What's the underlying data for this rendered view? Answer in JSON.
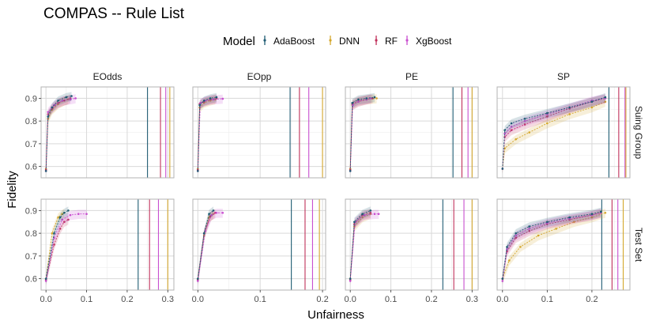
{
  "title": "COMPAS -- Rule List",
  "legend": {
    "title": "Model",
    "items": [
      {
        "label": "AdaBoost",
        "color": "#1f5c73"
      },
      {
        "label": "DNN",
        "color": "#d4a72c"
      },
      {
        "label": "RF",
        "color": "#c0305a"
      },
      {
        "label": "XgBoost",
        "color": "#c94fd0"
      }
    ]
  },
  "xlabel": "Unfairness",
  "ylabel": "Fidelity",
  "chart_data": {
    "type": "line",
    "title": "COMPAS -- Rule List",
    "xlabel": "Unfairness",
    "ylabel": "Fidelity",
    "ylim": [
      0.55,
      0.95
    ],
    "yticks": [
      0.6,
      0.7,
      0.8,
      0.9
    ],
    "ytick_labels": [
      "0.6",
      "0.7",
      "0.8",
      "0.9"
    ],
    "columns": [
      {
        "label": "EOdds",
        "xlim": [
          -0.012,
          0.315
        ],
        "xticks": [
          0.0,
          0.1,
          0.2,
          0.3
        ],
        "xtick_labels": [
          "0.0",
          "0.1",
          "0.2",
          "0.3"
        ]
      },
      {
        "label": "EOpp",
        "xlim": [
          -0.008,
          0.205
        ],
        "xticks": [
          0.0,
          0.1,
          0.2
        ],
        "xtick_labels": [
          "0.0",
          "0.1",
          "0.2"
        ]
      },
      {
        "label": "PE",
        "xlim": [
          -0.012,
          0.315
        ],
        "xticks": [
          0.0,
          0.1,
          0.2,
          0.3
        ],
        "xtick_labels": [
          "0.0",
          "0.1",
          "0.2",
          "0.3"
        ]
      },
      {
        "label": "SP",
        "xlim": [
          -0.012,
          0.285
        ],
        "xticks": [
          0.0,
          0.1,
          0.2
        ],
        "xtick_labels": [
          "0.0",
          "0.1",
          "0.2"
        ]
      }
    ],
    "rows": [
      {
        "label": "Suing Group"
      },
      {
        "label": "Test Set"
      }
    ],
    "series": [
      {
        "name": "AdaBoost",
        "color": "#1f5c73"
      },
      {
        "name": "DNN",
        "color": "#d4a72c"
      },
      {
        "name": "RF",
        "color": "#c0305a"
      },
      {
        "name": "XgBoost",
        "color": "#c94fd0"
      }
    ],
    "panels": [
      {
        "row": 0,
        "col": 0,
        "vlines": {
          "AdaBoost": 0.25,
          "RF": 0.282,
          "XgBoost": 0.295,
          "DNN": 0.305
        },
        "curves": {
          "AdaBoost": [
            [
              0.0,
              0.58
            ],
            [
              0.005,
              0.82
            ],
            [
              0.015,
              0.86
            ],
            [
              0.03,
              0.89
            ],
            [
              0.05,
              0.905
            ],
            [
              0.063,
              0.91
            ]
          ],
          "DNN": [
            [
              0.0,
              0.59
            ],
            [
              0.005,
              0.81
            ],
            [
              0.015,
              0.85
            ],
            [
              0.03,
              0.875
            ],
            [
              0.045,
              0.89
            ],
            [
              0.055,
              0.895
            ]
          ],
          "RF": [
            [
              0.0,
              0.585
            ],
            [
              0.005,
              0.83
            ],
            [
              0.015,
              0.855
            ],
            [
              0.03,
              0.88
            ],
            [
              0.045,
              0.89
            ],
            [
              0.06,
              0.9
            ]
          ],
          "XgBoost": [
            [
              0.0,
              0.58
            ],
            [
              0.005,
              0.84
            ],
            [
              0.02,
              0.87
            ],
            [
              0.04,
              0.89
            ],
            [
              0.06,
              0.895
            ],
            [
              0.073,
              0.9
            ]
          ]
        }
      },
      {
        "row": 0,
        "col": 1,
        "vlines": {
          "AdaBoost": 0.148,
          "RF": 0.163,
          "XgBoost": 0.178,
          "DNN": 0.2
        },
        "curves": {
          "AdaBoost": [
            [
              0.0,
              0.58
            ],
            [
              0.003,
              0.87
            ],
            [
              0.01,
              0.89
            ],
            [
              0.02,
              0.9
            ],
            [
              0.03,
              0.905
            ]
          ],
          "DNN": [
            [
              0.0,
              0.59
            ],
            [
              0.003,
              0.86
            ],
            [
              0.01,
              0.88
            ],
            [
              0.02,
              0.89
            ],
            [
              0.028,
              0.895
            ]
          ],
          "RF": [
            [
              0.0,
              0.585
            ],
            [
              0.003,
              0.875
            ],
            [
              0.01,
              0.885
            ],
            [
              0.02,
              0.895
            ],
            [
              0.03,
              0.9
            ]
          ],
          "XgBoost": [
            [
              0.0,
              0.58
            ],
            [
              0.004,
              0.88
            ],
            [
              0.012,
              0.89
            ],
            [
              0.025,
              0.895
            ],
            [
              0.04,
              0.898
            ]
          ]
        }
      },
      {
        "row": 0,
        "col": 2,
        "vlines": {
          "AdaBoost": 0.253,
          "RF": 0.275,
          "XgBoost": 0.29,
          "DNN": 0.3
        },
        "curves": {
          "AdaBoost": [
            [
              0.0,
              0.58
            ],
            [
              0.005,
              0.88
            ],
            [
              0.02,
              0.895
            ],
            [
              0.04,
              0.9
            ],
            [
              0.06,
              0.905
            ]
          ],
          "DNN": [
            [
              0.0,
              0.59
            ],
            [
              0.005,
              0.87
            ],
            [
              0.02,
              0.885
            ],
            [
              0.04,
              0.895
            ],
            [
              0.065,
              0.9
            ]
          ],
          "RF": [
            [
              0.0,
              0.585
            ],
            [
              0.005,
              0.875
            ],
            [
              0.02,
              0.89
            ],
            [
              0.04,
              0.895
            ],
            [
              0.055,
              0.9
            ]
          ],
          "XgBoost": [
            [
              0.0,
              0.58
            ],
            [
              0.006,
              0.87
            ],
            [
              0.02,
              0.885
            ],
            [
              0.04,
              0.895
            ],
            [
              0.05,
              0.9
            ]
          ]
        }
      },
      {
        "row": 0,
        "col": 3,
        "vlines": {
          "AdaBoost": 0.238,
          "RF": 0.26,
          "XgBoost": 0.274,
          "DNN": 0.276
        },
        "curves": {
          "AdaBoost": [
            [
              0.0,
              0.59
            ],
            [
              0.005,
              0.76
            ],
            [
              0.02,
              0.79
            ],
            [
              0.05,
              0.81
            ],
            [
              0.1,
              0.835
            ],
            [
              0.15,
              0.86
            ],
            [
              0.2,
              0.885
            ],
            [
              0.23,
              0.905
            ]
          ],
          "DNN": [
            [
              0.0,
              0.59
            ],
            [
              0.005,
              0.68
            ],
            [
              0.03,
              0.72
            ],
            [
              0.06,
              0.75
            ],
            [
              0.1,
              0.79
            ],
            [
              0.15,
              0.83
            ],
            [
              0.2,
              0.86
            ],
            [
              0.23,
              0.885
            ]
          ],
          "RF": [
            [
              0.0,
              0.59
            ],
            [
              0.005,
              0.73
            ],
            [
              0.02,
              0.76
            ],
            [
              0.05,
              0.785
            ],
            [
              0.1,
              0.82
            ],
            [
              0.15,
              0.855
            ],
            [
              0.2,
              0.885
            ],
            [
              0.23,
              0.9
            ]
          ],
          "XgBoost": [
            [
              0.0,
              0.59
            ],
            [
              0.005,
              0.745
            ],
            [
              0.02,
              0.775
            ],
            [
              0.05,
              0.8
            ],
            [
              0.1,
              0.83
            ],
            [
              0.15,
              0.86
            ],
            [
              0.2,
              0.89
            ],
            [
              0.23,
              0.9
            ]
          ]
        }
      },
      {
        "row": 1,
        "col": 0,
        "vlines": {
          "AdaBoost": 0.227,
          "RF": 0.255,
          "XgBoost": 0.277,
          "DNN": 0.3
        },
        "curves": {
          "AdaBoost": [
            [
              0.0,
              0.6
            ],
            [
              0.02,
              0.8
            ],
            [
              0.035,
              0.87
            ],
            [
              0.045,
              0.89
            ],
            [
              0.055,
              0.9
            ]
          ],
          "DNN": [
            [
              0.0,
              0.6
            ],
            [
              0.015,
              0.8
            ],
            [
              0.03,
              0.87
            ],
            [
              0.04,
              0.885
            ],
            [
              0.045,
              0.89
            ]
          ],
          "RF": [
            [
              0.0,
              0.595
            ],
            [
              0.02,
              0.75
            ],
            [
              0.035,
              0.82
            ],
            [
              0.045,
              0.85
            ],
            [
              0.055,
              0.86
            ]
          ],
          "XgBoost": [
            [
              0.0,
              0.59
            ],
            [
              0.02,
              0.78
            ],
            [
              0.04,
              0.86
            ],
            [
              0.06,
              0.88
            ],
            [
              0.08,
              0.885
            ],
            [
              0.1,
              0.885
            ]
          ]
        }
      },
      {
        "row": 1,
        "col": 1,
        "vlines": {
          "AdaBoost": 0.15,
          "RF": 0.172,
          "XgBoost": 0.184,
          "DNN": 0.195
        },
        "curves": {
          "AdaBoost": [
            [
              0.0,
              0.6
            ],
            [
              0.01,
              0.8
            ],
            [
              0.018,
              0.885
            ],
            [
              0.025,
              0.9
            ]
          ],
          "DNN": [
            [
              0.0,
              0.6
            ],
            [
              0.01,
              0.79
            ],
            [
              0.018,
              0.87
            ],
            [
              0.025,
              0.885
            ]
          ],
          "RF": [
            [
              0.0,
              0.595
            ],
            [
              0.01,
              0.8
            ],
            [
              0.02,
              0.875
            ],
            [
              0.028,
              0.89
            ]
          ],
          "XgBoost": [
            [
              0.0,
              0.59
            ],
            [
              0.012,
              0.81
            ],
            [
              0.022,
              0.88
            ],
            [
              0.03,
              0.89
            ],
            [
              0.04,
              0.89
            ]
          ]
        }
      },
      {
        "row": 1,
        "col": 2,
        "vlines": {
          "AdaBoost": 0.228,
          "RF": 0.255,
          "XgBoost": 0.28,
          "DNN": 0.3
        },
        "curves": {
          "AdaBoost": [
            [
              0.0,
              0.6
            ],
            [
              0.01,
              0.85
            ],
            [
              0.03,
              0.885
            ],
            [
              0.05,
              0.9
            ]
          ],
          "DNN": [
            [
              0.0,
              0.6
            ],
            [
              0.01,
              0.83
            ],
            [
              0.03,
              0.87
            ],
            [
              0.05,
              0.885
            ]
          ],
          "RF": [
            [
              0.0,
              0.595
            ],
            [
              0.01,
              0.84
            ],
            [
              0.03,
              0.88
            ],
            [
              0.05,
              0.89
            ]
          ],
          "XgBoost": [
            [
              0.0,
              0.59
            ],
            [
              0.012,
              0.85
            ],
            [
              0.035,
              0.88
            ],
            [
              0.06,
              0.885
            ],
            [
              0.07,
              0.885
            ]
          ]
        }
      },
      {
        "row": 1,
        "col": 3,
        "vlines": {
          "AdaBoost": 0.222,
          "RF": 0.245,
          "XgBoost": 0.258,
          "DNN": 0.27
        },
        "curves": {
          "AdaBoost": [
            [
              0.0,
              0.6
            ],
            [
              0.01,
              0.74
            ],
            [
              0.03,
              0.8
            ],
            [
              0.06,
              0.83
            ],
            [
              0.1,
              0.85
            ],
            [
              0.15,
              0.87
            ],
            [
              0.2,
              0.885
            ],
            [
              0.22,
              0.895
            ]
          ],
          "DNN": [
            [
              0.0,
              0.6
            ],
            [
              0.015,
              0.68
            ],
            [
              0.04,
              0.74
            ],
            [
              0.08,
              0.79
            ],
            [
              0.12,
              0.82
            ],
            [
              0.16,
              0.85
            ],
            [
              0.2,
              0.87
            ],
            [
              0.23,
              0.89
            ]
          ],
          "RF": [
            [
              0.0,
              0.6
            ],
            [
              0.01,
              0.72
            ],
            [
              0.03,
              0.78
            ],
            [
              0.06,
              0.81
            ],
            [
              0.1,
              0.84
            ],
            [
              0.15,
              0.86
            ],
            [
              0.2,
              0.88
            ],
            [
              0.22,
              0.89
            ]
          ],
          "XgBoost": [
            [
              0.0,
              0.59
            ],
            [
              0.01,
              0.73
            ],
            [
              0.03,
              0.79
            ],
            [
              0.06,
              0.82
            ],
            [
              0.1,
              0.845
            ],
            [
              0.15,
              0.865
            ],
            [
              0.2,
              0.88
            ],
            [
              0.22,
              0.89
            ]
          ]
        }
      }
    ]
  }
}
